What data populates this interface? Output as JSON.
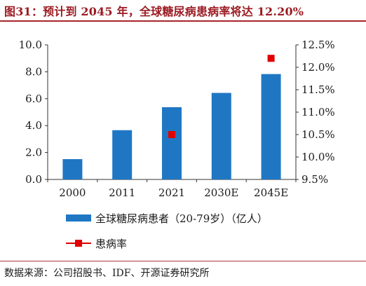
{
  "title": "图31：预计到 2045 年，全球糖尿病患病率将达 12.20%",
  "source": "数据来源：公司招股书、IDF、开源证券研究所",
  "colors": {
    "title": "#9b1b22",
    "bar": "#1f77c4",
    "marker": "#e00000"
  },
  "chart_data": {
    "type": "bar",
    "categories": [
      "2000",
      "2011",
      "2021",
      "2030E",
      "2045E"
    ],
    "series": [
      {
        "name": "全球糖尿病患者（20-79岁）（亿人）",
        "type": "bar",
        "axis": "left",
        "values": [
          1.51,
          3.66,
          5.37,
          6.43,
          7.83
        ]
      },
      {
        "name": "患病率",
        "type": "scatter",
        "axis": "right",
        "values": [
          null,
          null,
          10.5,
          null,
          12.2
        ]
      }
    ],
    "y_left": {
      "lim": [
        0,
        10
      ],
      "ticks": [
        "0.0",
        "2.0",
        "4.0",
        "6.0",
        "8.0",
        "10.0"
      ]
    },
    "y_right": {
      "lim": [
        9.5,
        12.5
      ],
      "ticks": [
        "9.5%",
        "10.0%",
        "10.5%",
        "11.0%",
        "11.5%",
        "12.0%",
        "12.5%"
      ]
    },
    "grid": false,
    "legend_position": "bottom"
  }
}
